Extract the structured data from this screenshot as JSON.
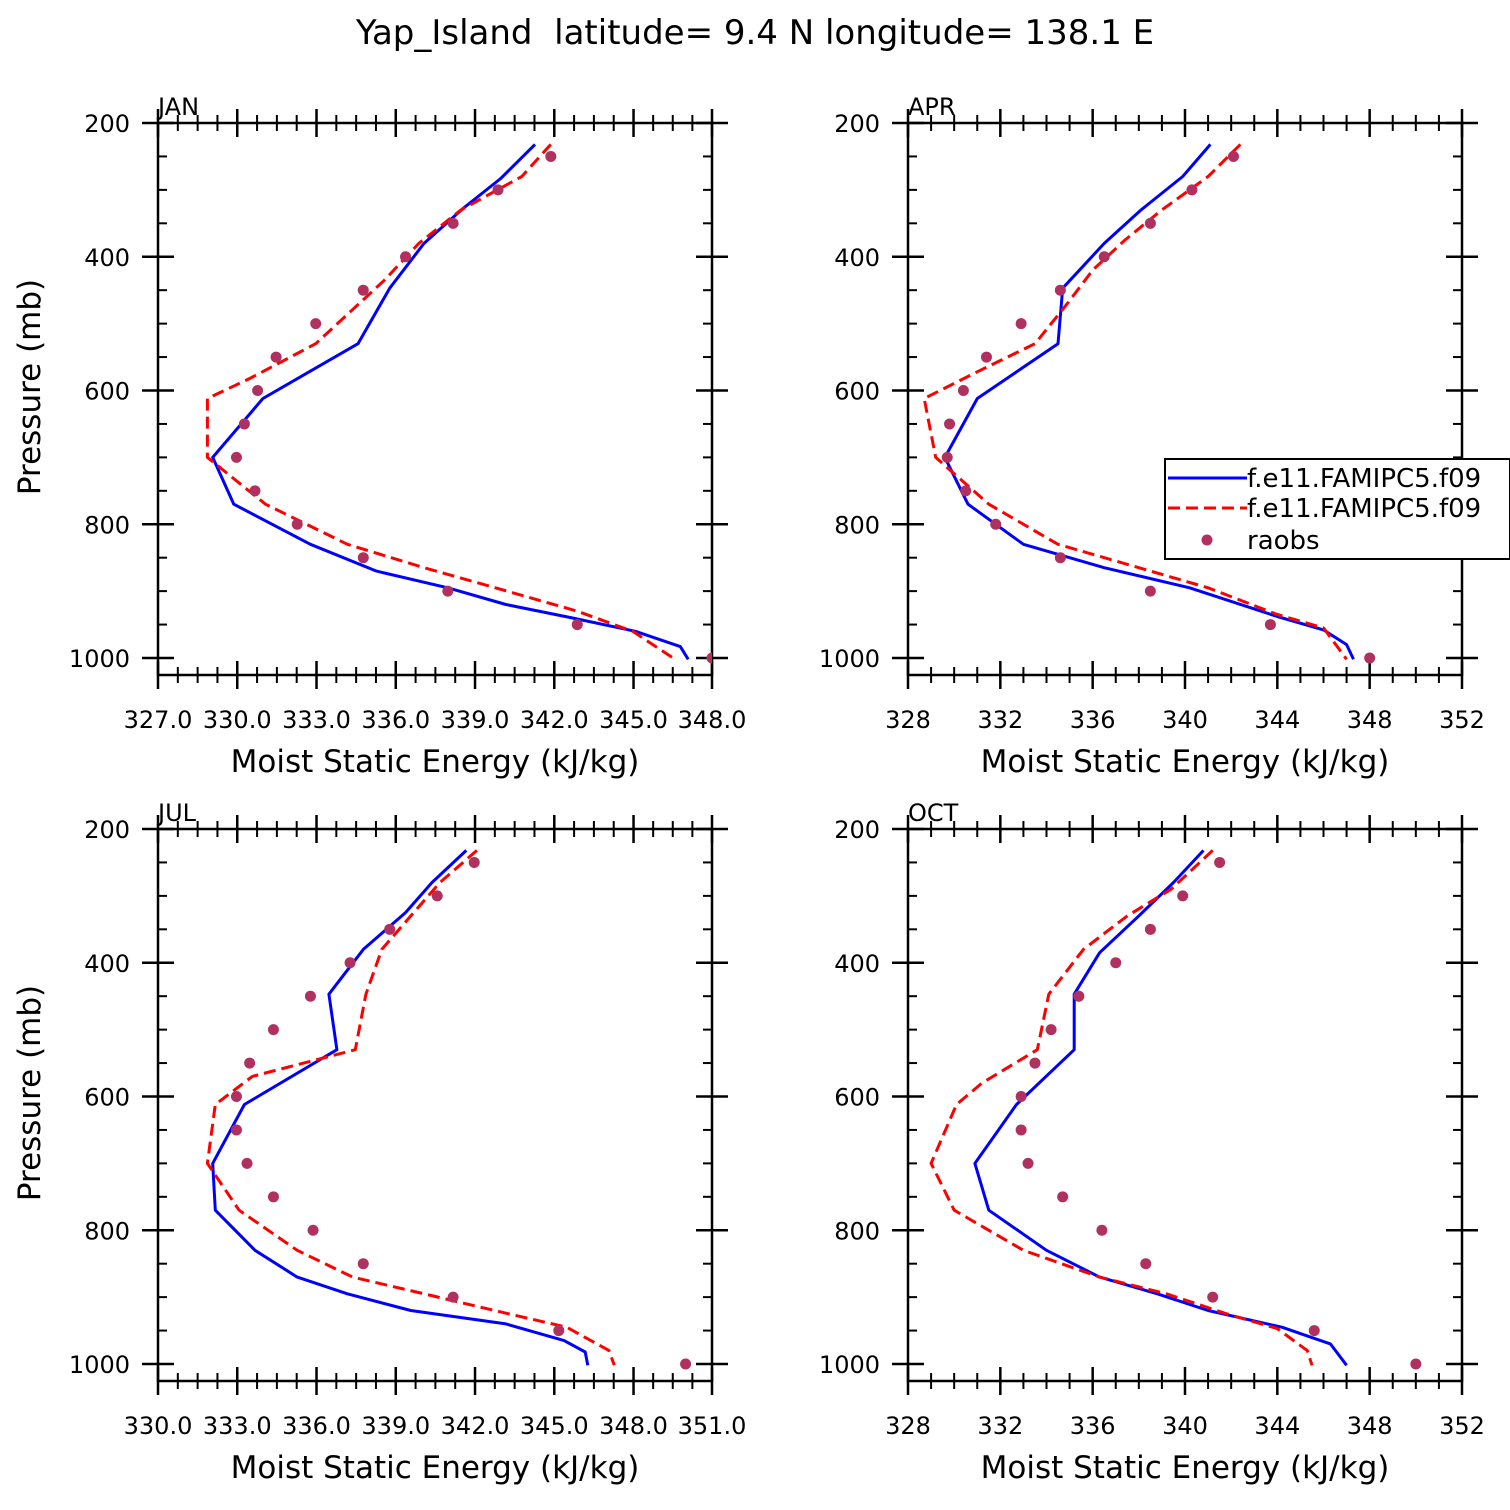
{
  "figure": {
    "title": "Yap_Island  latitude= 9.4 N longitude= 138.1 E"
  },
  "legend": {
    "entries": [
      {
        "label": "f.e11.FAMIPC5.f09",
        "style": "solid",
        "color": "#0000ff"
      },
      {
        "label": "f.e11.FAMIPC5.f09",
        "style": "dashed",
        "color": "#ff0000"
      },
      {
        "label": "raobs",
        "style": "marker",
        "color": "#b03060"
      }
    ]
  },
  "colors": {
    "model_solid": "#0000ff",
    "model_dashed": "#ff0000",
    "raobs": "#b03060"
  },
  "chart_data": [
    {
      "type": "line",
      "panel": "JAN",
      "xlabel": "Moist Static Energy (kJ/kg)",
      "ylabel": "Pressure (mb)",
      "xlim": [
        327.03,
        348.0
      ],
      "ylim": [
        200,
        1000
      ],
      "y_inverted": true,
      "x_ticks": [
        327.03,
        330.03,
        333.03,
        336.03,
        339.03,
        342.03,
        345.03,
        348.0
      ],
      "x_tick_labels": [
        "327.0",
        "330.0",
        "333.0",
        "336.0",
        "339.0",
        "342.0",
        "345.0",
        "348.0"
      ],
      "y_ticks": [
        200,
        400,
        600,
        800,
        1000
      ],
      "y_tick_labels": [
        "200",
        "400",
        "600",
        "800",
        "1000"
      ],
      "series": [
        {
          "style": "solid",
          "color": "#0000ff",
          "points": [
            [
              341.3,
              232
            ],
            [
              340.0,
              283
            ],
            [
              338.6,
              327
            ],
            [
              337.1,
              380
            ],
            [
              335.8,
              447
            ],
            [
              334.6,
              530
            ],
            [
              331.0,
              612
            ],
            [
              329.1,
              700
            ],
            [
              329.9,
              770
            ],
            [
              332.8,
              830
            ],
            [
              335.3,
              870
            ],
            [
              338.0,
              895
            ],
            [
              340.2,
              920
            ],
            [
              342.7,
              940
            ],
            [
              345.1,
              960
            ],
            [
              346.8,
              983
            ],
            [
              347.1,
              1002
            ]
          ]
        },
        {
          "style": "dashed",
          "color": "#ff0000",
          "points": [
            [
              341.9,
              232
            ],
            [
              340.8,
              280
            ],
            [
              338.5,
              330
            ],
            [
              336.9,
              380
            ],
            [
              335.6,
              435
            ],
            [
              333.0,
              530
            ],
            [
              330.5,
              582
            ],
            [
              328.9,
              612
            ],
            [
              328.9,
              700
            ],
            [
              331.1,
              770
            ],
            [
              334.2,
              830
            ],
            [
              337.1,
              865
            ],
            [
              339.8,
              895
            ],
            [
              342.9,
              930
            ],
            [
              345.0,
              960
            ],
            [
              346.6,
              1002
            ]
          ]
        },
        {
          "style": "marker",
          "color": "#b03060",
          "points": [
            [
              341.9,
              250
            ],
            [
              339.9,
              300
            ],
            [
              338.2,
              350
            ],
            [
              336.4,
              400
            ],
            [
              334.8,
              450
            ],
            [
              333.0,
              500
            ],
            [
              331.5,
              550
            ],
            [
              330.8,
              600
            ],
            [
              330.3,
              650
            ],
            [
              330.0,
              700
            ],
            [
              330.7,
              750
            ],
            [
              332.3,
              800
            ],
            [
              334.8,
              850
            ],
            [
              338.0,
              900
            ],
            [
              342.9,
              950
            ],
            [
              348.0,
              1000
            ]
          ]
        }
      ]
    },
    {
      "type": "line",
      "panel": "APR",
      "xlabel": "Moist Static Energy (kJ/kg)",
      "ylabel": "",
      "xlim": [
        328,
        352
      ],
      "ylim": [
        200,
        1000
      ],
      "y_inverted": true,
      "x_ticks": [
        328,
        332,
        336,
        340,
        344,
        348,
        352
      ],
      "x_tick_labels": [
        "328",
        "332",
        "336",
        "340",
        "344",
        "348",
        "352"
      ],
      "y_ticks": [
        200,
        400,
        600,
        800,
        1000
      ],
      "y_tick_labels": [
        "200",
        "400",
        "600",
        "800",
        "1000"
      ],
      "series": [
        {
          "style": "solid",
          "color": "#0000ff",
          "points": [
            [
              341.1,
              232
            ],
            [
              339.9,
              280
            ],
            [
              338.1,
              330
            ],
            [
              336.5,
              380
            ],
            [
              334.7,
              447
            ],
            [
              334.5,
              530
            ],
            [
              331.0,
              612
            ],
            [
              329.6,
              700
            ],
            [
              330.6,
              770
            ],
            [
              333.0,
              830
            ],
            [
              336.5,
              865
            ],
            [
              340.2,
              895
            ],
            [
              344.0,
              938
            ],
            [
              346.0,
              958
            ],
            [
              347.0,
              980
            ],
            [
              347.3,
              1002
            ]
          ]
        },
        {
          "style": "dashed",
          "color": "#ff0000",
          "points": [
            [
              342.4,
              232
            ],
            [
              341.0,
              280
            ],
            [
              339.0,
              330
            ],
            [
              337.4,
              375
            ],
            [
              336.0,
              420
            ],
            [
              334.9,
              470
            ],
            [
              333.5,
              530
            ],
            [
              331.0,
              572
            ],
            [
              328.7,
              612
            ],
            [
              329.2,
              700
            ],
            [
              331.5,
              770
            ],
            [
              334.5,
              830
            ],
            [
              338.0,
              865
            ],
            [
              341.0,
              895
            ],
            [
              344.0,
              935
            ],
            [
              346.0,
              955
            ],
            [
              347.0,
              1002
            ]
          ]
        },
        {
          "style": "marker",
          "color": "#b03060",
          "points": [
            [
              342.1,
              250
            ],
            [
              340.3,
              300
            ],
            [
              338.5,
              350
            ],
            [
              336.5,
              400
            ],
            [
              334.6,
              450
            ],
            [
              332.9,
              500
            ],
            [
              331.4,
              550
            ],
            [
              330.4,
              600
            ],
            [
              329.8,
              650
            ],
            [
              329.7,
              700
            ],
            [
              330.5,
              750
            ],
            [
              331.8,
              800
            ],
            [
              334.6,
              850
            ],
            [
              338.5,
              900
            ],
            [
              343.7,
              950
            ],
            [
              348.0,
              1000
            ]
          ]
        }
      ]
    },
    {
      "type": "line",
      "panel": "JUL",
      "xlabel": "Moist Static Energy (kJ/kg)",
      "ylabel": "Pressure (mb)",
      "xlim": [
        330.03,
        351.0
      ],
      "ylim": [
        200,
        1000
      ],
      "y_inverted": true,
      "x_ticks": [
        330.03,
        333.03,
        336.03,
        339.03,
        342.03,
        345.03,
        348.03,
        351.0
      ],
      "x_tick_labels": [
        "330.0",
        "333.0",
        "336.0",
        "339.0",
        "342.0",
        "345.0",
        "348.0",
        "351.0"
      ],
      "y_ticks": [
        200,
        400,
        600,
        800,
        1000
      ],
      "y_tick_labels": [
        "200",
        "400",
        "600",
        "800",
        "1000"
      ],
      "series": [
        {
          "style": "solid",
          "color": "#0000ff",
          "points": [
            [
              341.7,
              232
            ],
            [
              340.4,
              280
            ],
            [
              339.4,
              325
            ],
            [
              337.8,
              380
            ],
            [
              336.5,
              447
            ],
            [
              336.8,
              530
            ],
            [
              333.3,
              612
            ],
            [
              332.1,
              700
            ],
            [
              332.2,
              770
            ],
            [
              333.7,
              830
            ],
            [
              335.3,
              870
            ],
            [
              337.2,
              895
            ],
            [
              339.6,
              920
            ],
            [
              343.2,
              940
            ],
            [
              345.4,
              965
            ],
            [
              346.2,
              982
            ],
            [
              346.3,
              1002
            ]
          ]
        },
        {
          "style": "dashed",
          "color": "#ff0000",
          "points": [
            [
              342.1,
              232
            ],
            [
              340.7,
              280
            ],
            [
              339.6,
              330
            ],
            [
              338.5,
              380
            ],
            [
              337.9,
              447
            ],
            [
              337.5,
              530
            ],
            [
              333.6,
              570
            ],
            [
              332.2,
              612
            ],
            [
              331.9,
              700
            ],
            [
              333.1,
              770
            ],
            [
              335.3,
              830
            ],
            [
              337.4,
              870
            ],
            [
              340.1,
              895
            ],
            [
              343.3,
              925
            ],
            [
              345.5,
              945
            ],
            [
              347.1,
              980
            ],
            [
              347.3,
              1002
            ]
          ]
        },
        {
          "style": "marker",
          "color": "#b03060",
          "points": [
            [
              342.0,
              250
            ],
            [
              340.6,
              300
            ],
            [
              338.8,
              350
            ],
            [
              337.3,
              400
            ],
            [
              335.8,
              450
            ],
            [
              334.4,
              500
            ],
            [
              333.5,
              550
            ],
            [
              333.0,
              600
            ],
            [
              333.0,
              650
            ],
            [
              333.4,
              700
            ],
            [
              334.4,
              750
            ],
            [
              335.9,
              800
            ],
            [
              337.8,
              850
            ],
            [
              341.2,
              900
            ],
            [
              345.2,
              950
            ],
            [
              350.0,
              1000
            ]
          ]
        }
      ]
    },
    {
      "type": "line",
      "panel": "OCT",
      "xlabel": "Moist Static Energy (kJ/kg)",
      "ylabel": "",
      "xlim": [
        328,
        352
      ],
      "ylim": [
        200,
        1000
      ],
      "y_inverted": true,
      "x_ticks": [
        328,
        332,
        336,
        340,
        344,
        348,
        352
      ],
      "x_tick_labels": [
        "328",
        "332",
        "336",
        "340",
        "344",
        "348",
        "352"
      ],
      "y_ticks": [
        200,
        400,
        600,
        800,
        1000
      ],
      "y_tick_labels": [
        "200",
        "400",
        "600",
        "800",
        "1000"
      ],
      "series": [
        {
          "style": "solid",
          "color": "#0000ff",
          "points": [
            [
              340.8,
              232
            ],
            [
              339.5,
              280
            ],
            [
              338.0,
              330
            ],
            [
              336.3,
              385
            ],
            [
              335.2,
              447
            ],
            [
              335.2,
              530
            ],
            [
              332.7,
              612
            ],
            [
              330.9,
              700
            ],
            [
              331.5,
              770
            ],
            [
              334.0,
              830
            ],
            [
              336.3,
              870
            ],
            [
              338.8,
              895
            ],
            [
              341.0,
              920
            ],
            [
              344.2,
              945
            ],
            [
              346.3,
              970
            ],
            [
              347.0,
              1002
            ]
          ]
        },
        {
          "style": "dashed",
          "color": "#ff0000",
          "points": [
            [
              341.2,
              232
            ],
            [
              339.4,
              290
            ],
            [
              337.5,
              330
            ],
            [
              335.6,
              380
            ],
            [
              334.1,
              447
            ],
            [
              333.6,
              530
            ],
            [
              331.2,
              580
            ],
            [
              330.1,
              612
            ],
            [
              329.0,
              700
            ],
            [
              330.0,
              770
            ],
            [
              333.0,
              830
            ],
            [
              336.3,
              870
            ],
            [
              339.2,
              895
            ],
            [
              341.8,
              925
            ],
            [
              344.0,
              947
            ],
            [
              345.3,
              980
            ],
            [
              345.5,
              1002
            ]
          ]
        },
        {
          "style": "marker",
          "color": "#b03060",
          "points": [
            [
              341.5,
              250
            ],
            [
              339.9,
              300
            ],
            [
              338.5,
              350
            ],
            [
              337.0,
              400
            ],
            [
              335.4,
              450
            ],
            [
              334.2,
              500
            ],
            [
              333.5,
              550
            ],
            [
              332.9,
              600
            ],
            [
              332.9,
              650
            ],
            [
              333.2,
              700
            ],
            [
              334.7,
              750
            ],
            [
              336.4,
              800
            ],
            [
              338.3,
              850
            ],
            [
              341.2,
              900
            ],
            [
              345.6,
              950
            ],
            [
              350.0,
              1000
            ]
          ]
        }
      ]
    }
  ]
}
